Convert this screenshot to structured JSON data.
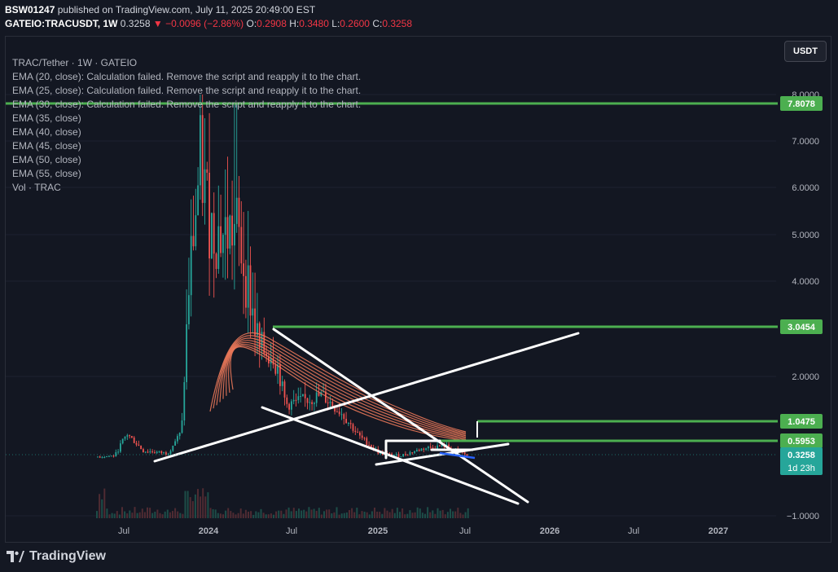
{
  "header": {
    "publisher": "BSW01247",
    "published_text": "published on TradingView.com, July 11, 2025 20:49:00 EST",
    "symbol": "GATEIO:TRACUSDT, 1W",
    "last": "0.3258",
    "change": "−0.0096 (−2.86%)",
    "open_label": "O:",
    "open": "0.2908",
    "high_label": "H:",
    "high": "0.3480",
    "low_label": "L:",
    "low": "0.2600",
    "close_label": "C:",
    "close": "0.3258"
  },
  "currency_button": "USDT",
  "legend": {
    "title": "TRAC/Tether · 1W · GATEIO",
    "items": [
      "EMA (20, close): Calculation failed. Remove the script and reapply it to the chart.",
      "EMA (25, close): Calculation failed. Remove the script and reapply it to the chart.",
      "EMA (30, close): Calculation failed. Remove the script and reapply it to the chart.",
      "EMA (35, close)",
      "EMA (40, close)",
      "EMA (45, close)",
      "EMA (50, close)",
      "EMA (55, close)",
      "Vol · TRAC"
    ]
  },
  "footer": {
    "brand": "TradingView"
  },
  "colors": {
    "background": "#131722",
    "up": "#26a69a",
    "down": "#ef5350",
    "level_line": "#4caf50",
    "trendline": "#ffffff",
    "ema": "#f57c5c",
    "blue_line": "#2962ff",
    "price_tag": "#26a69a"
  },
  "chart_data": {
    "type": "candlestick",
    "scale": "log",
    "y_ticks": [
      "8.0000",
      "7.0000",
      "6.0000",
      "5.0000",
      "4.0000",
      "2.0000",
      "−1.0000"
    ],
    "x_ticks": [
      "Jul",
      "2024",
      "Jul",
      "2025",
      "Jul",
      "2026",
      "Jul",
      "2027"
    ],
    "price_levels": [
      {
        "label": "7.8078",
        "value": 7.8078
      },
      {
        "label": "3.0454",
        "value": 3.0454
      },
      {
        "label": "1.0475",
        "value": 1.0475
      },
      {
        "label": "0.5953",
        "value": 0.5953
      }
    ],
    "current_price": {
      "label": "0.3258",
      "countdown": "1d 23h"
    }
  }
}
